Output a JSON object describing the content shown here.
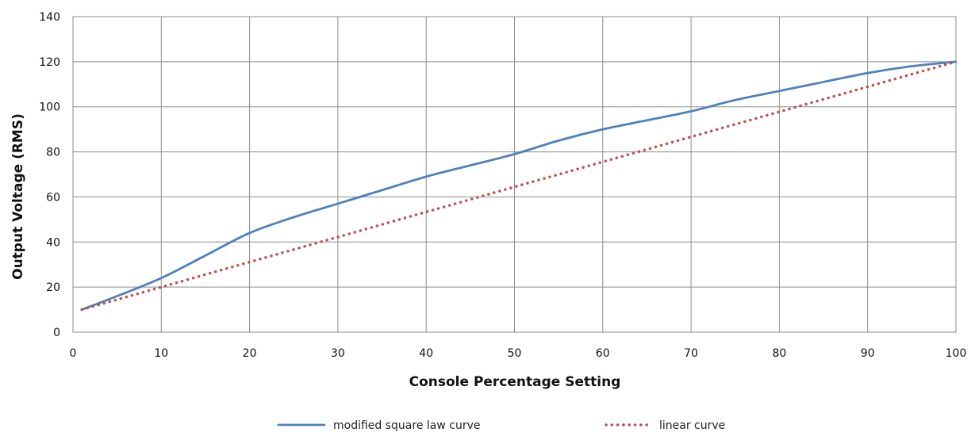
{
  "chart_data": {
    "type": "line",
    "title": "",
    "xlabel": "Console Percentage Setting",
    "ylabel": "Output Voltage (RMS)",
    "xlim": [
      0,
      100
    ],
    "ylim": [
      0,
      140
    ],
    "x_ticks": [
      0,
      10,
      20,
      30,
      40,
      50,
      60,
      70,
      80,
      90,
      100
    ],
    "y_ticks": [
      0,
      20,
      40,
      60,
      80,
      100,
      120,
      140
    ],
    "grid": true,
    "legend_position": "bottom",
    "series": [
      {
        "name": "modified square law curve",
        "color": "#4F81BD",
        "style": "solid",
        "x": [
          1,
          5,
          10,
          15,
          20,
          25,
          30,
          35,
          40,
          45,
          50,
          55,
          60,
          65,
          70,
          75,
          80,
          85,
          90,
          95,
          100
        ],
        "y": [
          10,
          16,
          24,
          34,
          44,
          51,
          57,
          63,
          69,
          74,
          79,
          85,
          90,
          94,
          98,
          103,
          107,
          111,
          115,
          118,
          120
        ]
      },
      {
        "name": "linear curve",
        "color": "#C0504D",
        "style": "dotted",
        "x": [
          1,
          100
        ],
        "y": [
          10,
          120
        ]
      }
    ]
  }
}
